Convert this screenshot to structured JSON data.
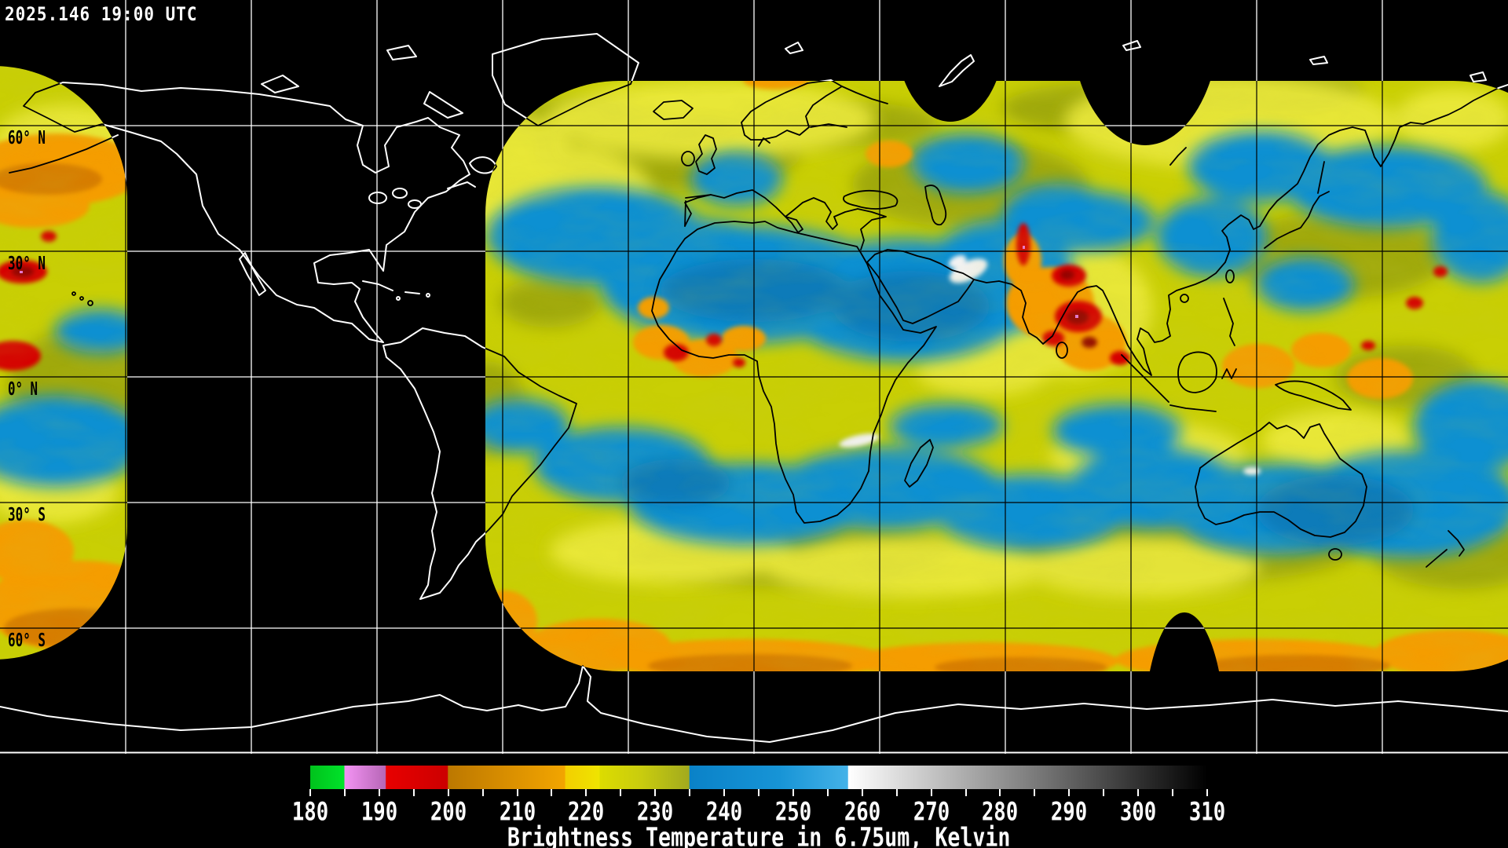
{
  "header": {
    "timestamp": "2025.146 19:00 UTC"
  },
  "map": {
    "latitude_labels": [
      "60° N",
      "30° N",
      "0° N",
      "30° S",
      "60° S"
    ]
  },
  "colorbar": {
    "caption": "Brightness Temperature in 6.75um, Kelvin",
    "min": 180,
    "max": 310,
    "major_tick_step": 10,
    "minor_tick_step": 5,
    "tick_labels": [
      "180",
      "190",
      "200",
      "210",
      "220",
      "230",
      "240",
      "250",
      "260",
      "270",
      "280",
      "290",
      "300",
      "310"
    ],
    "gradient_stops": [
      {
        "t": 180,
        "c": "#00c21c"
      },
      {
        "t": 184.9,
        "c": "#00e32a"
      },
      {
        "t": 185,
        "c": "#f393f3"
      },
      {
        "t": 190.9,
        "c": "#b666b6"
      },
      {
        "t": 191,
        "c": "#e80000"
      },
      {
        "t": 199.9,
        "c": "#cc0000"
      },
      {
        "t": 200,
        "c": "#bc7800"
      },
      {
        "t": 208,
        "c": "#d78d00"
      },
      {
        "t": 216.9,
        "c": "#f2a500"
      },
      {
        "t": 217,
        "c": "#f2cf00"
      },
      {
        "t": 221.9,
        "c": "#efe400"
      },
      {
        "t": 222,
        "c": "#dcdc00"
      },
      {
        "t": 228,
        "c": "#c9cc0e"
      },
      {
        "t": 234.9,
        "c": "#a2aa1e"
      },
      {
        "t": 235,
        "c": "#0a82c8"
      },
      {
        "t": 248,
        "c": "#1794d6"
      },
      {
        "t": 257.9,
        "c": "#44b2e8"
      },
      {
        "t": 258,
        "c": "#ffffff"
      },
      {
        "t": 310,
        "c": "#000000"
      }
    ]
  },
  "palette": {
    "background": "#000000",
    "text": "#ffffff",
    "grid_on_background": "#ffffff",
    "grid_on_data": "#000000",
    "coast_on_background": "#ffffff",
    "coast_on_data": "#000000",
    "data_base_yellow": "#c9cf04",
    "data_blue": "#1090d2",
    "data_orange": "#f59d00",
    "data_red": "#d60000"
  }
}
